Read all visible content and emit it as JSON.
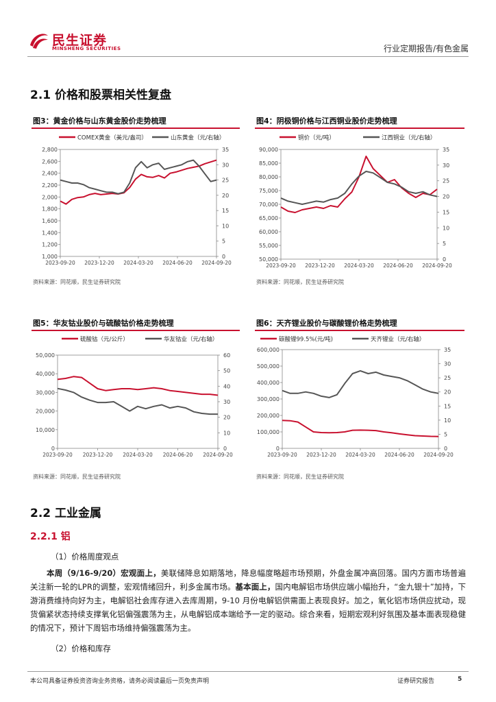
{
  "header": {
    "logo_cn": "民生证券",
    "logo_en": "MINSHENG SECURITIES",
    "report_type": "行业定期报告/有色金属"
  },
  "section_2_1": {
    "title": "2.1 价格和股票相关性复盘"
  },
  "figures": {
    "fig3": {
      "title": "图3：黄金价格与山东黄金股价走势梳理",
      "source": "资料来源：同花顺，民生证券研究院"
    },
    "fig4": {
      "title": "图4：阴极铜价格与江西铜业股价走势梳理",
      "source": "资料来源：同花顺，民生证券研究院"
    },
    "fig5": {
      "title": "图5：华友钴业股价与硫酸钴价格走势梳理",
      "source": "资料来源：同花顺，民生证券研究院"
    },
    "fig6": {
      "title": "图6：天齐锂业股价与碳酸锂价格走势梳理",
      "source": "资料来源：同花顺，民生证券研究院"
    }
  },
  "chart_data": [
    {
      "id": "fig3",
      "type": "line",
      "x_ticks": [
        "2023-09-20",
        "2023-12-20",
        "2024-03-20",
        "2024-06-20",
        "2024-09-20"
      ],
      "y_left_ticks": [
        "2,800",
        "2,600",
        "2,400",
        "2,200",
        "2,000",
        "1,800",
        "1,600",
        "1,400",
        "1,200",
        "1,000"
      ],
      "y_right_ticks": [
        "35",
        "30",
        "25",
        "20",
        "15",
        "10",
        "5",
        "0"
      ],
      "ylim_left": [
        1000,
        2800
      ],
      "ylim_right": [
        0,
        35
      ],
      "series": [
        {
          "name": "COMEX黄金（美元/盎司）",
          "axis": "left",
          "color": "#c8102e",
          "values": [
            1930,
            1880,
            1960,
            1990,
            2000,
            2040,
            2060,
            2040,
            2050,
            2060,
            2050,
            2070,
            2160,
            2300,
            2380,
            2340,
            2330,
            2360,
            2320,
            2400,
            2420,
            2450,
            2480,
            2500,
            2520,
            2560,
            2590,
            2620
          ]
        },
        {
          "name": "山东黄金（元/右轴）",
          "axis": "right",
          "color": "#555555",
          "values": [
            25,
            24.5,
            24,
            24,
            23.5,
            22.5,
            22,
            21.5,
            21,
            21,
            20.5,
            21,
            24,
            29,
            31,
            29,
            30,
            30.5,
            28.5,
            29,
            29.5,
            30,
            31,
            31.5,
            29.5,
            27,
            24.5,
            25
          ]
        }
      ]
    },
    {
      "id": "fig4",
      "type": "line",
      "x_ticks": [
        "2023-09-20",
        "2023-12-20",
        "2024-03-20",
        "2024-06-20",
        "2024-09-20"
      ],
      "y_left_ticks": [
        "90,000",
        "85,000",
        "80,000",
        "75,000",
        "70,000",
        "65,000",
        "60,000",
        "55,000",
        "50,000"
      ],
      "y_right_ticks": [
        "35",
        "30",
        "25",
        "20",
        "15",
        "10",
        "5",
        "0"
      ],
      "ylim_left": [
        50000,
        90000
      ],
      "ylim_right": [
        0,
        35
      ],
      "series": [
        {
          "name": "铜价（元/吨）",
          "axis": "left",
          "color": "#c8102e",
          "values": [
            69000,
            67500,
            67000,
            68000,
            68500,
            69000,
            68500,
            69500,
            69000,
            72000,
            74500,
            80000,
            87500,
            83000,
            80500,
            78000,
            79000,
            76000,
            74000,
            72500,
            74000,
            73500,
            75500
          ]
        },
        {
          "name": "江西铜业（元/右轴）",
          "axis": "right",
          "color": "#555555",
          "values": [
            19.5,
            18.5,
            18,
            17.5,
            18,
            18.5,
            18.2,
            19,
            19.5,
            21,
            24,
            26.5,
            28,
            27.5,
            26,
            24.5,
            24,
            23,
            21.5,
            21,
            21.5,
            20.5,
            20
          ]
        }
      ]
    },
    {
      "id": "fig5",
      "type": "line",
      "x_ticks": [
        "2023-09-20",
        "2023-12-20",
        "2024-03-20",
        "2024-06-20",
        "2024-09-20"
      ],
      "y_left_ticks": [
        "50,000",
        "40,000",
        "30,000",
        "20,000",
        "10,000",
        "0"
      ],
      "y_right_ticks": [
        "60",
        "50",
        "40",
        "30",
        "20",
        "10",
        "0"
      ],
      "ylim_left": [
        0,
        50000
      ],
      "ylim_right": [
        0,
        60
      ],
      "series": [
        {
          "name": "硫酸钴（元/公斤）",
          "axis": "left",
          "color": "#c8102e",
          "values": [
            37000,
            37500,
            38500,
            38000,
            35000,
            32000,
            31000,
            31500,
            32000,
            32000,
            31500,
            32000,
            32500,
            32000,
            31000,
            30500,
            30000,
            29500,
            29000,
            29000,
            28500
          ]
        },
        {
          "name": "华友钴业（元/右轴）",
          "axis": "right",
          "color": "#555555",
          "values": [
            38.5,
            37.5,
            36,
            33,
            31,
            29.5,
            29.5,
            30,
            27,
            24,
            27,
            25.5,
            27,
            28,
            26,
            27,
            26,
            23.5,
            22.5,
            22,
            22
          ]
        }
      ]
    },
    {
      "id": "fig6",
      "type": "line",
      "x_ticks": [
        "2023-09-20",
        "2023-12-20",
        "2024-03-20",
        "2024-06-20",
        "2024-09-20"
      ],
      "y_left_ticks": [
        "600,000",
        "500,000",
        "400,000",
        "300,000",
        "200,000",
        "100,000",
        "0"
      ],
      "y_right_ticks": [
        "35",
        "30",
        "25",
        "20",
        "15",
        "10",
        "5",
        "0"
      ],
      "ylim_left": [
        0,
        600000
      ],
      "ylim_right": [
        0,
        35
      ],
      "series": [
        {
          "name": "碳酸锂99.5%(元/吨)",
          "axis": "left",
          "color": "#c8102e",
          "values": [
            170000,
            168000,
            160000,
            130000,
            100000,
            96000,
            95000,
            96000,
            100000,
            110000,
            111000,
            110000,
            108000,
            100000,
            95000,
            88000,
            82000,
            77000,
            75000,
            73000,
            72000
          ]
        },
        {
          "name": "天齐锂业（元/右轴）",
          "axis": "right",
          "color": "#555555",
          "values": [
            20.5,
            19.5,
            19.5,
            20,
            19.5,
            18.5,
            18,
            19,
            23,
            26.5,
            27.5,
            26.5,
            27,
            26,
            25.5,
            25,
            24,
            22.5,
            21,
            20,
            19.5
          ]
        }
      ]
    }
  ],
  "section_2_2": {
    "title": "2.2 工业金属",
    "sub": "2.2.1 铝",
    "point1": "（1）价格周度观点",
    "para": [
      {
        "b": true,
        "t": "本周（9/16-9/20）宏观面上，"
      },
      {
        "b": false,
        "t": "美联储降息如期落地，降息幅度略超市场预期，外盘金属冲高回落。国内方面市场普遍关注新一轮的LPR的调整，宏观情绪回升，利多金属市场。"
      },
      {
        "b": true,
        "t": "基本面上，"
      },
      {
        "b": false,
        "t": "国内电解铝市场供应端小幅抬升，“金九银十”加持，下游消费维持向好为主，电解铝社会库存进入去库周期，9-10 月份电解铝供需面上表现良好。加之，氧化铝市场供应扰动，现货偏紧状态持续支撑氧化铝偏强震荡为主，从电解铝成本端给予一定的驱动。综合来看，短期宏观利好氛围及基本面表现稳健的情况下，预计下周铝市场维持偏强震荡为主。"
      }
    ],
    "point2": "（2）价格和库存"
  },
  "footer": {
    "disclaimer": "本公司具备证券投资咨询业务资格，请务必阅读最后一页免责声明",
    "label": "证券研究报告",
    "page": "5"
  }
}
